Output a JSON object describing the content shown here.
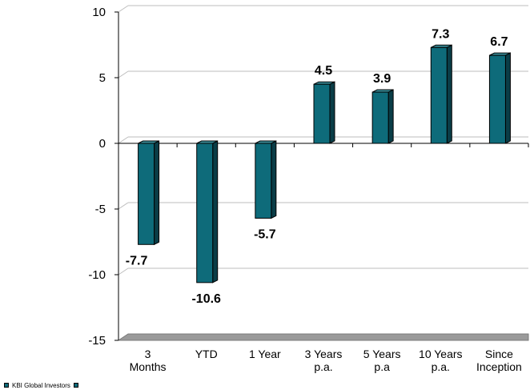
{
  "chart_data": {
    "type": "bar",
    "categories": [
      [
        "3",
        "Months"
      ],
      [
        "YTD"
      ],
      [
        "1 Year"
      ],
      [
        "3 Years",
        "p.a."
      ],
      [
        "5 Years",
        "p.a"
      ],
      [
        "10 Years",
        "p.a."
      ],
      [
        "Since",
        "Inception"
      ]
    ],
    "series": [
      {
        "name": "KBI Global Investors",
        "values": [
          -7.7,
          -10.6,
          -5.7,
          4.5,
          3.9,
          7.3,
          6.7
        ],
        "labels": [
          "-7.7",
          "-10.6",
          "-5.7",
          "4.5",
          "3.9",
          "7.3",
          "6.7"
        ]
      }
    ],
    "y_ticks": [
      "10",
      "5",
      "0",
      "-5",
      "-10",
      "-15"
    ],
    "ylim": [
      -15,
      10
    ],
    "grid": true,
    "legend_position": "bottom-left",
    "colors": {
      "bar_front": "#0e6b7a",
      "bar_side": "#0a3d47",
      "bar_top": "#3a8f9c",
      "grid": "#bdbdbd",
      "floor": "#9a9a9a"
    }
  }
}
